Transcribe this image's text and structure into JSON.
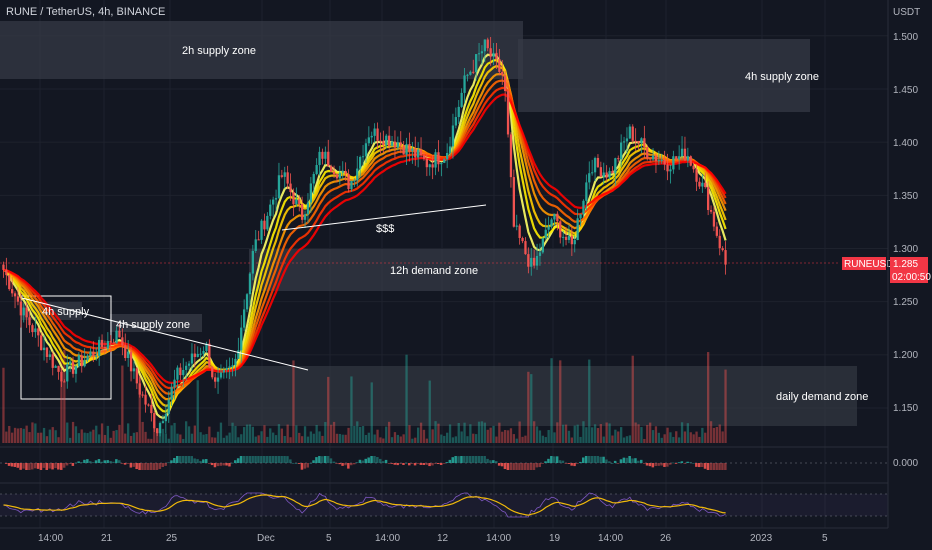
{
  "header": {
    "title": "RUNE / TetherUS, 4h, BINANCE"
  },
  "price_axis": {
    "currency": "USDT",
    "ticks": [
      "1.500",
      "1.450",
      "1.400",
      "1.350",
      "1.300",
      "1.250",
      "1.200",
      "1.150"
    ],
    "indicator_tick": "0.000"
  },
  "symbol_tag": {
    "symbol": "RUNEUSDT",
    "price": "1.285",
    "countdown": "02:00:50"
  },
  "time_axis": {
    "labels": [
      "14:00",
      "21",
      "25",
      "Dec",
      "5",
      "14:00",
      "12",
      "14:00",
      "19",
      "14:00",
      "26",
      "2023",
      "5"
    ]
  },
  "annotations": {
    "supply_2h": "2h supply zone",
    "supply_4h_right": "4h supply zone",
    "demand_12h": "12h demand zone",
    "demand_daily": "daily demand zone",
    "supply_4h_box": "4h supply",
    "supply_4h_left": "4h supply zone",
    "liquidity": "$$$"
  },
  "colors": {
    "background": "#131722",
    "up": "#26a69a",
    "down": "#ef5350",
    "zone": "#363a45",
    "tag": "#f23645",
    "ribbon": [
      "#ff0000",
      "#ff3300",
      "#ff6600",
      "#ff9900",
      "#ffcc00",
      "#ffee00",
      "#ffff66"
    ]
  },
  "chart_data": {
    "type": "candlestick",
    "symbol": "RUNE / TetherUS",
    "interval": "4h",
    "exchange": "BINANCE",
    "ylim": [
      1.12,
      1.52
    ],
    "last_price": 1.285,
    "close_path": [
      {
        "t": 0,
        "p": 1.28
      },
      {
        "t": 2,
        "p": 1.24
      },
      {
        "t": 4,
        "p": 1.21
      },
      {
        "t": 6,
        "p": 1.18
      },
      {
        "t": 9,
        "p": 1.2
      },
      {
        "t": 12,
        "p": 1.22
      },
      {
        "t": 14,
        "p": 1.17
      },
      {
        "t": 16,
        "p": 1.13
      },
      {
        "t": 18,
        "p": 1.18
      },
      {
        "t": 21,
        "p": 1.21
      },
      {
        "t": 22,
        "p": 1.17
      },
      {
        "t": 24,
        "p": 1.19
      },
      {
        "t": 26,
        "p": 1.3
      },
      {
        "t": 29,
        "p": 1.37
      },
      {
        "t": 31,
        "p": 1.33
      },
      {
        "t": 33,
        "p": 1.39
      },
      {
        "t": 36,
        "p": 1.36
      },
      {
        "t": 38,
        "p": 1.41
      },
      {
        "t": 41,
        "p": 1.4
      },
      {
        "t": 44,
        "p": 1.38
      },
      {
        "t": 46,
        "p": 1.39
      },
      {
        "t": 48,
        "p": 1.46
      },
      {
        "t": 50,
        "p": 1.49
      },
      {
        "t": 52,
        "p": 1.46
      },
      {
        "t": 53,
        "p": 1.32
      },
      {
        "t": 55,
        "p": 1.28
      },
      {
        "t": 57,
        "p": 1.33
      },
      {
        "t": 59,
        "p": 1.3
      },
      {
        "t": 61,
        "p": 1.38
      },
      {
        "t": 63,
        "p": 1.37
      },
      {
        "t": 65,
        "p": 1.41
      },
      {
        "t": 67,
        "p": 1.39
      },
      {
        "t": 69,
        "p": 1.38
      },
      {
        "t": 71,
        "p": 1.39
      },
      {
        "t": 73,
        "p": 1.35
      },
      {
        "t": 75,
        "p": 1.285
      }
    ],
    "zones": [
      {
        "label": "2h supply zone",
        "low": 1.45,
        "high": 1.505
      },
      {
        "label": "4h supply zone",
        "low": 1.425,
        "high": 1.495
      },
      {
        "label": "12h demand zone",
        "low": 1.253,
        "high": 1.293
      },
      {
        "label": "daily demand zone",
        "low": 1.13,
        "high": 1.187
      }
    ],
    "indicator_panels": [
      {
        "name": "oscillator",
        "zero_label": "0.000"
      },
      {
        "name": "momentum",
        "type": "line"
      }
    ]
  }
}
